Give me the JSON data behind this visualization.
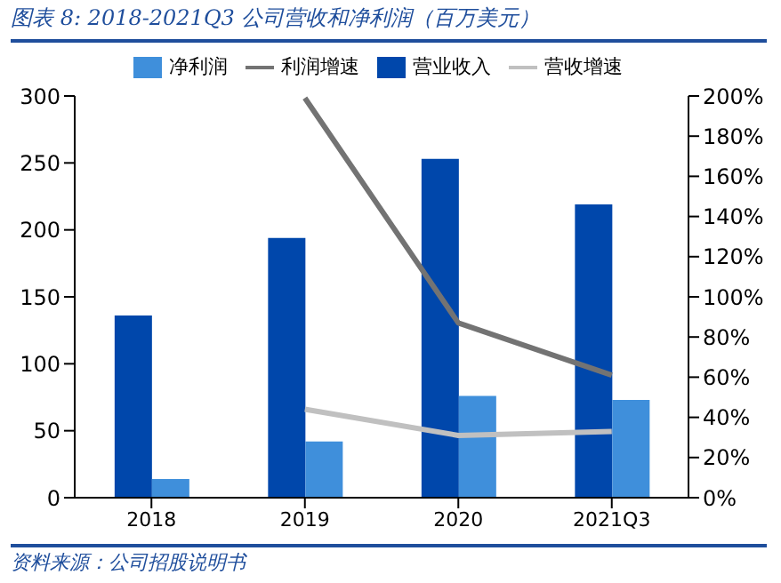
{
  "chart_data": {
    "type": "bar",
    "title": "图表 8:  2018-2021Q3 公司营收和净利润（百万美元）",
    "annotations": [
      "资料来源：公司招股说明书"
    ],
    "categories": [
      "2018",
      "2019",
      "2020",
      "2021Q3"
    ],
    "series": [
      {
        "name": "营业收入",
        "color": "#0047ab",
        "values": [
          136,
          194,
          253,
          219
        ]
      },
      {
        "name": "净利润",
        "color": "#3f8fdb",
        "values": [
          14,
          42,
          76,
          73
        ]
      },
      {
        "name": "营收增速",
        "type": "line",
        "axis": "y2",
        "color": "#c0c0c0",
        "values": [
          null,
          44,
          31,
          33
        ]
      },
      {
        "name": "利润增速",
        "type": "line",
        "axis": "y2",
        "color": "#737373",
        "values": [
          null,
          199,
          87,
          61
        ]
      }
    ],
    "ylim": [
      0,
      300
    ],
    "yticks": [
      0,
      50,
      100,
      150,
      200,
      250,
      300
    ],
    "y2lim": [
      0,
      200
    ],
    "y2ticks": [
      {
        "value": 0,
        "label": "0%"
      },
      {
        "value": 20,
        "label": "20%"
      },
      {
        "value": 40,
        "label": "40%"
      },
      {
        "value": 60,
        "label": "60%"
      },
      {
        "value": 80,
        "label": "80%"
      },
      {
        "value": 100,
        "label": "100%"
      },
      {
        "value": 120,
        "label": "120%"
      },
      {
        "value": 140,
        "label": "140%"
      },
      {
        "value": 160,
        "label": "160%"
      },
      {
        "value": 180,
        "label": "180%"
      },
      {
        "value": 200,
        "label": "200%"
      }
    ],
    "legend": "top",
    "grid": false,
    "marker": "none"
  }
}
